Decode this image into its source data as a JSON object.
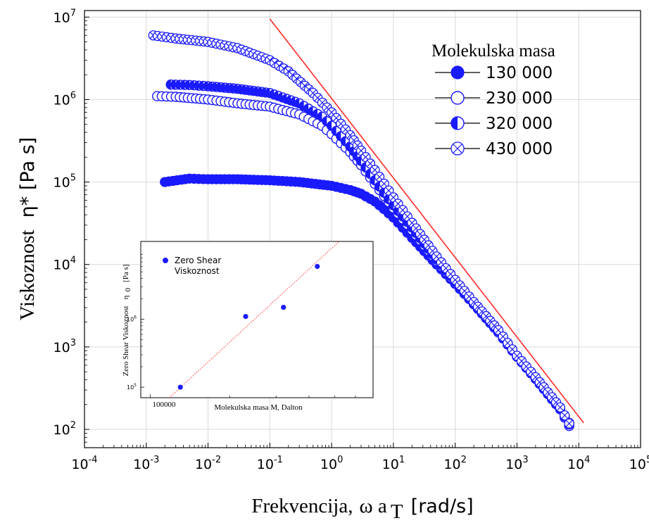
{
  "chart_data": [
    {
      "type": "scatter",
      "scale": "log-log",
      "xlabel_main": "Frekvencija,",
      "xlabel_symbol": "ω a",
      "xlabel_sub": "T",
      "xlabel_unit": "[rad/s]",
      "ylabel_main": "Viskoznost",
      "ylabel_symbol": "η* [Pa s]",
      "xlim": [
        0.0001,
        100000
      ],
      "ylim": [
        60,
        12000000
      ],
      "x_ticks": [
        {
          "value": 0.0001,
          "base": "10",
          "exp": "-4"
        },
        {
          "value": 0.001,
          "base": "10",
          "exp": "-3"
        },
        {
          "value": 0.01,
          "base": "10",
          "exp": "-2"
        },
        {
          "value": 0.1,
          "base": "10",
          "exp": "-1"
        },
        {
          "value": 1,
          "base": "10",
          "exp": "0"
        },
        {
          "value": 10,
          "base": "10",
          "exp": "1"
        },
        {
          "value": 100,
          "base": "10",
          "exp": "2"
        },
        {
          "value": 1000,
          "base": "10",
          "exp": "3"
        },
        {
          "value": 10000,
          "base": "10",
          "exp": "4"
        },
        {
          "value": 100000,
          "base": "10",
          "exp": "5"
        }
      ],
      "y_ticks": [
        {
          "value": 100,
          "base": "10",
          "exp": "2"
        },
        {
          "value": 1000,
          "base": "10",
          "exp": "3"
        },
        {
          "value": 10000,
          "base": "10",
          "exp": "4"
        },
        {
          "value": 100000,
          "base": "10",
          "exp": "5"
        },
        {
          "value": 1000000,
          "base": "10",
          "exp": "6"
        },
        {
          "value": 10000000,
          "base": "10",
          "exp": "7"
        }
      ],
      "grid": true,
      "legend": {
        "title": "Molekulska masa",
        "position": "top-right",
        "entries": [
          "130 000",
          "230 000",
          "320 000",
          "430 000"
        ]
      },
      "series": [
        {
          "name": "130 000",
          "marker": "filled-circle",
          "color": "#1a1aff",
          "x": [
            0.002,
            0.005,
            0.01,
            0.03,
            0.1,
            0.3,
            1,
            2,
            3,
            5,
            7,
            10,
            20,
            50,
            100,
            200,
            500,
            1000,
            2000,
            5000,
            7000
          ],
          "y": [
            100000,
            110000,
            108000,
            108000,
            105000,
            100000,
            90000,
            80000,
            72000,
            58000,
            47000,
            37000,
            21000,
            10000,
            5800,
            3300,
            1500,
            780,
            420,
            180,
            120
          ]
        },
        {
          "name": "230 000",
          "marker": "open-circle",
          "color": "#1a1aff",
          "x": [
            0.0015,
            0.003,
            0.01,
            0.03,
            0.1,
            0.3,
            0.7,
            1,
            2,
            3,
            5,
            10,
            20,
            50,
            100,
            200,
            500,
            1000,
            2000,
            5000,
            7000
          ],
          "y": [
            1100000,
            1080000,
            1000000,
            900000,
            820000,
            660000,
            480000,
            380000,
            230000,
            160000,
            95000,
            48000,
            26000,
            11000,
            6000,
            3300,
            1500,
            760,
            410,
            175,
            110
          ]
        },
        {
          "name": "320 000",
          "marker": "half-circle",
          "color": "#1a1aff",
          "x": [
            0.0025,
            0.005,
            0.01,
            0.03,
            0.1,
            0.3,
            0.7,
            1,
            2,
            3,
            5,
            10,
            20,
            50,
            100,
            200,
            500,
            1000,
            2000,
            5000,
            7000
          ],
          "y": [
            1520000,
            1500000,
            1450000,
            1350000,
            1200000,
            900000,
            620000,
            480000,
            270000,
            180000,
            105000,
            52000,
            28000,
            11500,
            6200,
            3400,
            1550,
            770,
            420,
            180,
            115
          ]
        },
        {
          "name": "430 000",
          "marker": "crossed-circle",
          "color": "#1a1aff",
          "x": [
            0.0013,
            0.003,
            0.01,
            0.03,
            0.1,
            0.2,
            0.5,
            1,
            2,
            3,
            5,
            10,
            20,
            50,
            100,
            200,
            500,
            1000,
            2000,
            5000,
            7000
          ],
          "y": [
            6000000,
            5500000,
            5000000,
            4200000,
            3000000,
            2200000,
            1200000,
            700000,
            370000,
            240000,
            140000,
            65000,
            32000,
            12500,
            6500,
            3500,
            1600,
            780,
            430,
            185,
            118
          ]
        }
      ],
      "fit_line": {
        "color": "#ff2a2a",
        "x": [
          0.1,
          12000
        ],
        "y": [
          9500000,
          120
        ]
      }
    },
    {
      "type": "scatter",
      "scale": "log-log",
      "xlabel": "Molekulska masa M, Dalton",
      "ylabel_main": "Zero Shear Viskoznost",
      "ylabel_symbol": "η",
      "ylabel_sub": "0",
      "ylabel_unit": "[Pa s]",
      "x_tick_labels": [
        "100000"
      ],
      "y_ticks": [
        {
          "value": 100000,
          "base": "10",
          "exp": "5"
        },
        {
          "value": 1000000,
          "base": "10",
          "exp": "6"
        }
      ],
      "legend": {
        "position": "top-left",
        "entries": [
          "Zero Shear",
          "Viskoznost"
        ]
      },
      "series": [
        {
          "marker": "filled-circle",
          "color": "#1a1aff",
          "x": [
            130000,
            230000,
            320000,
            430000
          ],
          "y": [
            100000,
            1100000,
            1500000,
            6000000
          ]
        }
      ],
      "fit_line": {
        "color": "#ff2a2a",
        "style": "dotted",
        "x": [
          118000,
          520000
        ],
        "y": [
          70000,
          14000000
        ]
      }
    }
  ]
}
